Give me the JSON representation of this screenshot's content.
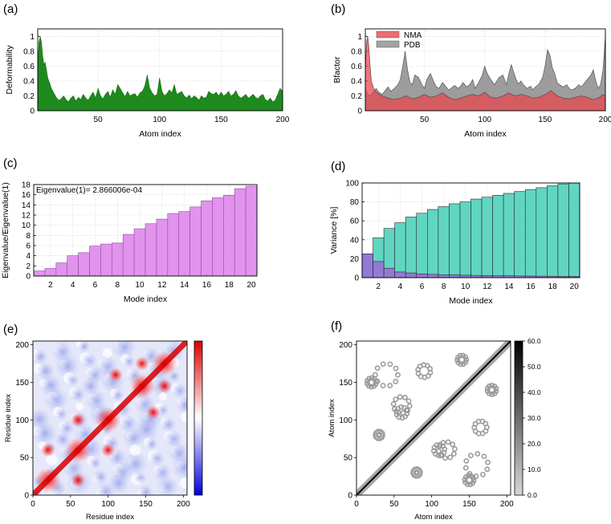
{
  "chart_data": [
    {
      "id": "a",
      "panel_label": "(a)",
      "type": "area",
      "xlabel": "Atom index",
      "ylabel": "Deformability",
      "xlim": [
        1,
        200
      ],
      "ylim": [
        0,
        1.1
      ],
      "xticks": [
        50,
        100,
        150,
        200
      ],
      "yticks": [
        0,
        0.2,
        0.4,
        0.6,
        0.8,
        1
      ],
      "grid": true,
      "colors": {
        "fill": "#1e8a1e",
        "stroke": "#0f6a0f"
      },
      "series": [
        {
          "x": [
            1,
            2,
            3,
            4,
            5,
            6,
            7,
            8,
            9,
            10,
            11,
            12,
            14,
            16,
            18,
            20,
            22,
            24,
            26,
            28,
            30,
            32,
            34,
            36,
            38,
            40,
            42,
            44,
            46,
            48,
            50,
            52,
            54,
            56,
            58,
            60,
            62,
            64,
            66,
            68,
            70,
            72,
            74,
            76,
            78,
            80,
            82,
            84,
            86,
            88,
            90,
            92,
            94,
            96,
            98,
            100,
            102,
            104,
            106,
            108,
            110,
            112,
            114,
            116,
            118,
            120,
            122,
            124,
            126,
            128,
            130,
            132,
            134,
            136,
            138,
            140,
            142,
            144,
            146,
            148,
            150,
            152,
            154,
            156,
            158,
            160,
            162,
            164,
            166,
            168,
            170,
            172,
            174,
            176,
            178,
            180,
            182,
            184,
            186,
            188,
            190,
            192,
            194,
            196,
            198,
            200
          ],
          "values": [
            0.55,
            0.92,
            1.0,
            0.92,
            0.74,
            0.62,
            0.65,
            0.56,
            0.45,
            0.4,
            0.36,
            0.3,
            0.24,
            0.18,
            0.14,
            0.16,
            0.2,
            0.15,
            0.12,
            0.17,
            0.2,
            0.13,
            0.18,
            0.15,
            0.22,
            0.17,
            0.14,
            0.2,
            0.25,
            0.17,
            0.3,
            0.2,
            0.16,
            0.22,
            0.26,
            0.18,
            0.28,
            0.22,
            0.35,
            0.3,
            0.24,
            0.19,
            0.26,
            0.2,
            0.22,
            0.23,
            0.18,
            0.24,
            0.26,
            0.33,
            0.48,
            0.3,
            0.24,
            0.2,
            0.22,
            0.44,
            0.26,
            0.2,
            0.23,
            0.28,
            0.24,
            0.35,
            0.22,
            0.24,
            0.26,
            0.2,
            0.17,
            0.21,
            0.16,
            0.2,
            0.18,
            0.14,
            0.2,
            0.17,
            0.18,
            0.26,
            0.23,
            0.22,
            0.25,
            0.2,
            0.25,
            0.2,
            0.22,
            0.26,
            0.2,
            0.22,
            0.27,
            0.2,
            0.17,
            0.19,
            0.22,
            0.17,
            0.19,
            0.22,
            0.18,
            0.16,
            0.2,
            0.22,
            0.15,
            0.13,
            0.17,
            0.12,
            0.14,
            0.22,
            0.3,
            0.26
          ]
        }
      ]
    },
    {
      "id": "b",
      "panel_label": "(b)",
      "type": "area",
      "xlabel": "Atom index",
      "ylabel": "Bfactor",
      "xlim": [
        1,
        200
      ],
      "ylim": [
        0,
        1.1
      ],
      "xticks": [
        50,
        100,
        150,
        200
      ],
      "yticks": [
        0,
        0.2,
        0.4,
        0.6,
        0.8,
        1
      ],
      "grid": true,
      "legend": "top-left",
      "series": [
        {
          "name": "NMA",
          "color": "#e5484d",
          "x": [
            1,
            2,
            3,
            4,
            5,
            6,
            8,
            10,
            15,
            20,
            25,
            30,
            35,
            40,
            45,
            50,
            55,
            60,
            65,
            70,
            75,
            80,
            85,
            90,
            95,
            100,
            105,
            110,
            115,
            120,
            125,
            130,
            135,
            140,
            145,
            150,
            155,
            160,
            165,
            170,
            175,
            180,
            185,
            190,
            195,
            198,
            200
          ],
          "values": [
            0.55,
            0.92,
            1.0,
            0.85,
            0.6,
            0.4,
            0.3,
            0.25,
            0.2,
            0.17,
            0.15,
            0.17,
            0.2,
            0.16,
            0.18,
            0.22,
            0.18,
            0.2,
            0.24,
            0.18,
            0.15,
            0.17,
            0.2,
            0.22,
            0.2,
            0.25,
            0.18,
            0.17,
            0.2,
            0.24,
            0.2,
            0.22,
            0.2,
            0.17,
            0.18,
            0.22,
            0.27,
            0.2,
            0.17,
            0.16,
            0.18,
            0.2,
            0.18,
            0.15,
            0.18,
            0.22,
            0.2
          ]
        },
        {
          "name": "PDB",
          "color": "#8c8c8c",
          "x": [
            1,
            3,
            5,
            8,
            10,
            12,
            15,
            18,
            20,
            22,
            25,
            28,
            30,
            32,
            34,
            36,
            38,
            40,
            42,
            45,
            48,
            50,
            52,
            55,
            58,
            60,
            62,
            65,
            68,
            70,
            72,
            75,
            78,
            80,
            82,
            85,
            88,
            90,
            92,
            95,
            98,
            100,
            102,
            105,
            108,
            110,
            112,
            115,
            118,
            120,
            122,
            124,
            126,
            128,
            130,
            132,
            135,
            138,
            140,
            142,
            145,
            148,
            150,
            152,
            154,
            156,
            158,
            160,
            162,
            165,
            168,
            170,
            172,
            175,
            178,
            180,
            182,
            185,
            188,
            190,
            192,
            194,
            196,
            198,
            200
          ],
          "values": [
            0.3,
            0.22,
            0.2,
            0.26,
            0.3,
            0.25,
            0.22,
            0.28,
            0.32,
            0.26,
            0.3,
            0.35,
            0.42,
            0.6,
            0.8,
            0.55,
            0.38,
            0.35,
            0.48,
            0.45,
            0.35,
            0.3,
            0.42,
            0.5,
            0.38,
            0.32,
            0.3,
            0.38,
            0.32,
            0.28,
            0.3,
            0.34,
            0.3,
            0.33,
            0.38,
            0.32,
            0.36,
            0.42,
            0.3,
            0.38,
            0.48,
            0.6,
            0.5,
            0.42,
            0.35,
            0.4,
            0.45,
            0.48,
            0.35,
            0.5,
            0.62,
            0.52,
            0.42,
            0.36,
            0.4,
            0.35,
            0.3,
            0.33,
            0.28,
            0.32,
            0.36,
            0.45,
            0.6,
            0.82,
            0.75,
            0.58,
            0.5,
            0.38,
            0.35,
            0.32,
            0.35,
            0.3,
            0.28,
            0.3,
            0.35,
            0.32,
            0.36,
            0.42,
            0.48,
            0.55,
            0.4,
            0.3,
            0.35,
            0.55,
            1.0
          ]
        }
      ]
    },
    {
      "id": "c",
      "panel_label": "(c)",
      "type": "bar",
      "xlabel": "Mode index",
      "ylabel": "Eigenvalue/Eigenvalue(1)",
      "annotation": "Eigenvalue(1)= 2.866006e-04",
      "ylim": [
        0,
        18
      ],
      "yticks": [
        0,
        2,
        4,
        6,
        8,
        10,
        12,
        14,
        16,
        18
      ],
      "xticks": [
        2,
        4,
        6,
        8,
        10,
        12,
        14,
        16,
        18,
        20
      ],
      "grid": true,
      "colors": {
        "fill": "#dd88ea",
        "stroke": "#9a48a8"
      },
      "categories": [
        1,
        2,
        3,
        4,
        5,
        6,
        7,
        8,
        9,
        10,
        11,
        12,
        13,
        14,
        15,
        16,
        17,
        18,
        19,
        20
      ],
      "values": [
        1.0,
        1.5,
        2.6,
        4.0,
        4.6,
        5.9,
        6.3,
        6.5,
        8.2,
        9.3,
        10.3,
        11.2,
        12.3,
        12.7,
        13.6,
        14.8,
        15.4,
        15.9,
        17.2,
        17.7
      ]
    },
    {
      "id": "d",
      "panel_label": "(d)",
      "type": "bar",
      "xlabel": "Mode index",
      "ylabel": "Variance [%]",
      "ylim": [
        0,
        100
      ],
      "yticks": [
        0,
        20,
        40,
        60,
        80,
        100
      ],
      "xticks": [
        2,
        4,
        6,
        8,
        10,
        12,
        14,
        16,
        18,
        20
      ],
      "grid": true,
      "categories": [
        1,
        2,
        3,
        4,
        5,
        6,
        7,
        8,
        9,
        10,
        11,
        12,
        13,
        14,
        15,
        16,
        17,
        18,
        19,
        20
      ],
      "series": [
        {
          "color": "#4fd1bb",
          "values": [
            25,
            42,
            52,
            58,
            64,
            68,
            72,
            75,
            78,
            80,
            83,
            85,
            87,
            89,
            91,
            93,
            95,
            97,
            99,
            100
          ]
        },
        {
          "color": "#9a6ad6",
          "values": [
            25,
            17,
            10,
            6,
            5,
            4,
            3.5,
            3,
            3,
            2.6,
            2.4,
            2.2,
            2,
            2,
            1.8,
            1.7,
            1.6,
            1.5,
            1.4,
            1.3
          ]
        }
      ]
    },
    {
      "id": "e",
      "panel_label": "(e)",
      "type": "heatmap",
      "xlabel": "Residue index",
      "ylabel": "Residue index",
      "xlim": [
        0,
        205
      ],
      "ylim": [
        0,
        205
      ],
      "xticks": [
        0,
        50,
        100,
        150,
        200
      ],
      "yticks": [
        0,
        50,
        100,
        150,
        200
      ],
      "colorbar": {
        "colors": [
          "#0000dd",
          "#ffffff",
          "#dd0000"
        ]
      },
      "hotspots": [
        [
          60,
          60
        ],
        [
          100,
          100
        ],
        [
          145,
          145
        ],
        [
          175,
          175
        ],
        [
          20,
          20
        ],
        [
          60,
          100
        ],
        [
          100,
          60
        ],
        [
          145,
          175
        ],
        [
          175,
          145
        ],
        [
          110,
          160
        ],
        [
          160,
          110
        ],
        [
          20,
          60
        ],
        [
          60,
          20
        ]
      ]
    },
    {
      "id": "f",
      "panel_label": "(f)",
      "type": "heatmap",
      "xlabel": "Atom index",
      "ylabel": "Atom index",
      "xlim": [
        0,
        205
      ],
      "ylim": [
        0,
        205
      ],
      "xticks": [
        0,
        50,
        100,
        150,
        200
      ],
      "yticks": [
        0,
        50,
        100,
        150,
        200
      ],
      "colorbar": {
        "ticks": [
          "0.0",
          "10.0",
          "20.0",
          "30.0",
          "40.0",
          "50.0",
          "60.0"
        ],
        "colors": [
          "#d8d8d8",
          "#000000"
        ]
      },
      "contact_regions": [
        [
          40,
          160,
          25
        ],
        [
          160,
          40,
          25
        ],
        [
          60,
          120,
          18
        ],
        [
          120,
          60,
          18
        ],
        [
          90,
          165,
          14
        ],
        [
          165,
          90,
          14
        ],
        [
          20,
          150,
          10
        ],
        [
          150,
          20,
          10
        ],
        [
          110,
          60,
          12
        ],
        [
          60,
          110,
          12
        ],
        [
          140,
          180,
          10
        ],
        [
          180,
          140,
          10
        ],
        [
          30,
          80,
          8
        ],
        [
          80,
          30,
          8
        ]
      ]
    }
  ]
}
